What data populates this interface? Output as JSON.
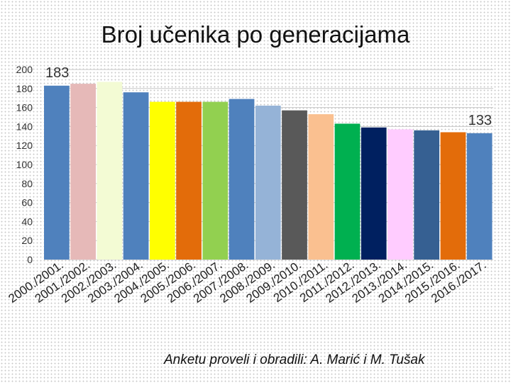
{
  "title": "Broj učenika po generacijama",
  "footer": "Anketu proveli i obradili: A. Marić i M. Tušak",
  "chart_data": {
    "type": "bar",
    "categories": [
      "2000./2001.",
      "2001./2002.",
      "2002./2003.",
      "2003./2004.",
      "2004./2005.",
      "2005./2006.",
      "2006./2007.",
      "2007./2008.",
      "2008./2009.",
      "2009./2010.",
      "2010./2011.",
      "2011./2012.",
      "2012./2013.",
      "2013./2014.",
      "2014./2015.",
      "2015./2016.",
      "2016./2017."
    ],
    "values": [
      183,
      185,
      187,
      176,
      166,
      166,
      166,
      169,
      162,
      157,
      153,
      143,
      139,
      137,
      136,
      134,
      133
    ],
    "colors": [
      "#4f81bd",
      "#e6b9b8",
      "#f3fbd4",
      "#4f81bd",
      "#ffff00",
      "#e36c0a",
      "#92d050",
      "#4f81bd",
      "#95b3d7",
      "#595959",
      "#fac090",
      "#00b050",
      "#002060",
      "#ffccff",
      "#366092",
      "#e36c0a",
      "#4f81bd"
    ],
    "data_labels": [
      {
        "index": 0,
        "text": "183"
      },
      {
        "index": 16,
        "text": "133"
      }
    ],
    "yticks": [
      0,
      20,
      40,
      60,
      80,
      100,
      120,
      140,
      160,
      180,
      200
    ],
    "ylim": [
      0,
      200
    ],
    "grid": true,
    "xlabel": "",
    "ylabel": ""
  }
}
